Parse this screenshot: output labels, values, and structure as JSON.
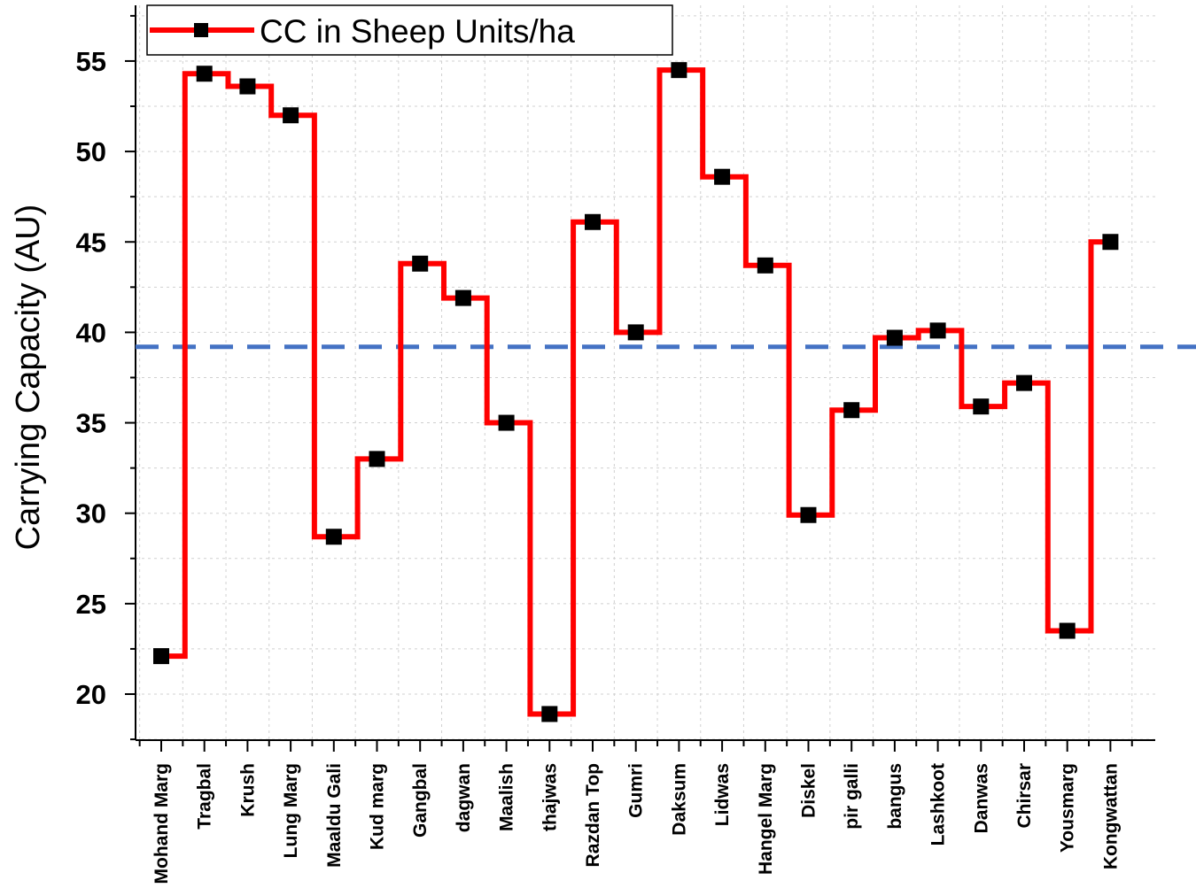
{
  "chart_data": {
    "type": "line",
    "step": true,
    "categories": [
      "Mohand Marg",
      "Tragbal",
      "Krush",
      "Lung Marg",
      "Maaldu Gali",
      "Kud marg",
      "Gangbal",
      "dagwan",
      "Maalish",
      "thajwas",
      "Razdan Top",
      "Gumri",
      "Daksum",
      "Lidwas",
      "Hangel Marg",
      "Diskel",
      "pir galli",
      "bangus",
      "Lashkoot",
      "Danwas",
      "Chirsar",
      "Yousmarg",
      "Kongwattan"
    ],
    "series": [
      {
        "name": "CC in Sheep Units/ha",
        "color": "#ff0000",
        "marker": "square",
        "values": [
          22.1,
          54.3,
          53.6,
          52.0,
          28.7,
          33.0,
          43.8,
          41.9,
          35.0,
          18.9,
          46.1,
          40.0,
          54.5,
          48.6,
          43.7,
          29.9,
          35.7,
          39.7,
          40.1,
          35.9,
          37.2,
          23.5,
          45.0
        ]
      }
    ],
    "reference_line": {
      "value": 39.2,
      "style": "dashed",
      "color": "#4472c4"
    },
    "ylabel": "Carrying Capacity (AU)",
    "xlabel": "",
    "ylim": [
      17.5,
      57.5
    ],
    "yticks": [
      20,
      25,
      30,
      35,
      40,
      45,
      50,
      55
    ],
    "grid": true,
    "legend": {
      "position": "top-left",
      "label": "CC in Sheep Units/ha"
    }
  }
}
